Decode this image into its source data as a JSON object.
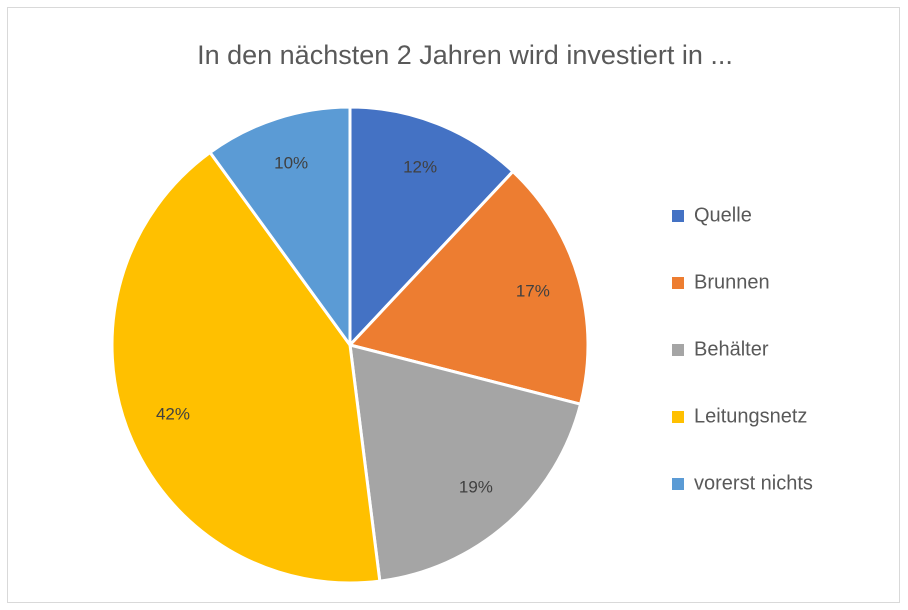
{
  "chart_data": {
    "type": "pie",
    "title": "In den nächsten 2 Jahren wird investiert in ...",
    "categories": [
      "Quelle",
      "Brunnen",
      "Behälter",
      "Leitungsnetz",
      "vorerst nichts"
    ],
    "values": [
      12,
      17,
      19,
      42,
      10
    ],
    "value_labels": [
      "12%",
      "17%",
      "19%",
      "42%",
      "10%"
    ],
    "colors": [
      "#4472c4",
      "#ed7d31",
      "#a5a5a5",
      "#ffc000",
      "#5b9bd5"
    ],
    "legend": "right"
  }
}
